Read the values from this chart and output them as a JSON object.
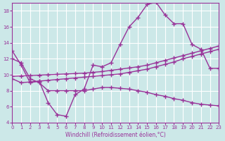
{
  "xlabel": "Windchill (Refroidissement éolien,°C)",
  "background_color": "#cce8e8",
  "grid_color": "#ffffff",
  "line_color": "#993399",
  "xlim": [
    0,
    23
  ],
  "ylim": [
    4,
    19
  ],
  "xticks": [
    0,
    1,
    2,
    3,
    4,
    5,
    6,
    7,
    8,
    9,
    10,
    11,
    12,
    13,
    14,
    15,
    16,
    17,
    18,
    19,
    20,
    21,
    22,
    23
  ],
  "yticks": [
    4,
    6,
    8,
    10,
    12,
    14,
    16,
    18
  ],
  "curve1_x": [
    0,
    1,
    2,
    3,
    4,
    5,
    6,
    7,
    8,
    9,
    10,
    11,
    12,
    13,
    14,
    15,
    16,
    17,
    18,
    19,
    20,
    21,
    22,
    23
  ],
  "curve1_y": [
    13.0,
    11.2,
    9.0,
    9.2,
    6.5,
    5.0,
    4.8,
    7.5,
    8.2,
    11.2,
    11.0,
    11.5,
    13.8,
    16.0,
    17.2,
    18.8,
    19.1,
    17.5,
    16.4,
    16.4,
    13.8,
    13.2,
    10.8,
    10.8
  ],
  "curve2_x": [
    0,
    1,
    2,
    3,
    4,
    5,
    6,
    7,
    8,
    9,
    10,
    11,
    12,
    13,
    14,
    15,
    16,
    17,
    18,
    19,
    20,
    21,
    22,
    23
  ],
  "curve2_y": [
    9.5,
    9.0,
    9.1,
    9.2,
    9.3,
    9.4,
    9.5,
    9.6,
    9.7,
    9.8,
    9.9,
    10.0,
    10.1,
    10.3,
    10.5,
    10.7,
    11.0,
    11.3,
    11.6,
    12.0,
    12.3,
    12.6,
    12.9,
    13.2
  ],
  "curve3_x": [
    0,
    1,
    2,
    3,
    4,
    5,
    6,
    7,
    8,
    9,
    10,
    11,
    12,
    13,
    14,
    15,
    16,
    17,
    18,
    19,
    20,
    21,
    22,
    23
  ],
  "curve3_y": [
    9.8,
    9.85,
    9.9,
    9.95,
    10.0,
    10.05,
    10.1,
    10.15,
    10.2,
    10.3,
    10.4,
    10.55,
    10.7,
    10.85,
    11.0,
    11.2,
    11.5,
    11.8,
    12.1,
    12.4,
    12.7,
    13.0,
    13.3,
    13.6
  ],
  "curve4_x": [
    0,
    1,
    2,
    3,
    4,
    5,
    6,
    7,
    8,
    9,
    10,
    11,
    12,
    13,
    14,
    15,
    16,
    17,
    18,
    19,
    20,
    21,
    22,
    23
  ],
  "curve4_y": [
    12.0,
    11.5,
    9.5,
    9.0,
    8.0,
    8.0,
    8.0,
    8.0,
    8.0,
    8.2,
    8.4,
    8.4,
    8.3,
    8.2,
    8.0,
    7.8,
    7.5,
    7.3,
    7.0,
    6.8,
    6.5,
    6.3,
    6.2,
    6.1
  ]
}
